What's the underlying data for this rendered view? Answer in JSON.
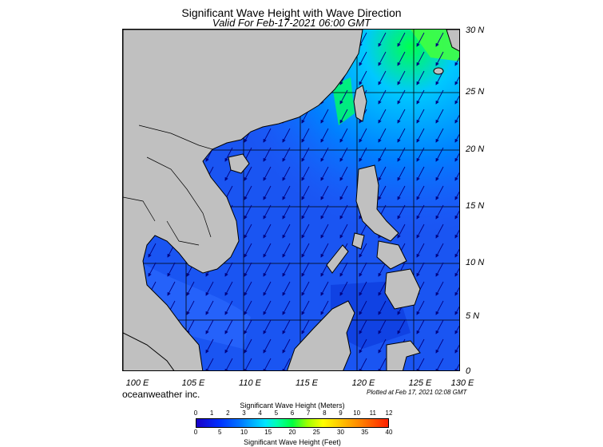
{
  "header": {
    "title": "Significant Wave Height with Wave Direction",
    "valid": "Valid For Feb-17-2021 06:00 GMT"
  },
  "map": {
    "lon_labels": [
      "100 E",
      "105 E",
      "110 E",
      "115 E",
      "120 E",
      "125 E",
      "130 E"
    ],
    "lat_labels": [
      "30 N",
      "25 N",
      "20 N",
      "15 N",
      "10 N",
      "5 N",
      "0"
    ],
    "colors": {
      "land": "#c0c0c0",
      "ocean_shallow": "#1e5cff",
      "ocean_deep": "#0a3af0",
      "north_swell": "#0096ff",
      "high_wave": "#00ff3c",
      "arrow": "#000080"
    },
    "arrow_direction": "from NE toward SW"
  },
  "footer": {
    "brand": "oceanweather inc.",
    "plotted": "Plotted at Feb 17, 2021 02:08 GMT"
  },
  "colorbar": {
    "meters_title": "Significant Wave Height (Meters)",
    "feet_title": "Significant Wave Height (Feet)",
    "meters_ticks": [
      "0",
      "1",
      "2",
      "3",
      "4",
      "5",
      "6",
      "7",
      "8",
      "9",
      "10",
      "11",
      "12"
    ],
    "feet_ticks": [
      "0",
      "5",
      "10",
      "15",
      "20",
      "25",
      "30",
      "35",
      "40"
    ],
    "scale_meters_max": 12,
    "scale_feet_max": 40
  }
}
